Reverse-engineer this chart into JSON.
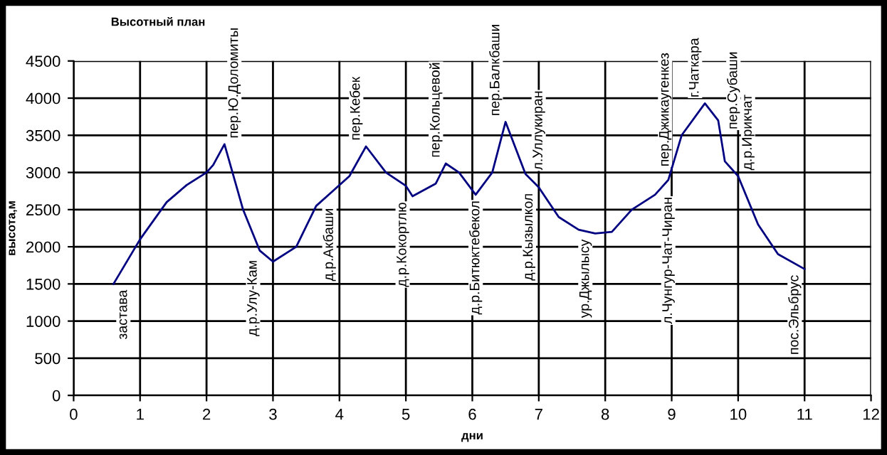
{
  "chart_data": {
    "type": "line",
    "title": "Высотный план",
    "xlabel": "дни",
    "ylabel": "высота,м",
    "xlim": [
      0,
      12
    ],
    "xticks": [
      0,
      1,
      2,
      3,
      4,
      5,
      6,
      7,
      8,
      9,
      10,
      11,
      12
    ],
    "ylim": [
      0,
      4500
    ],
    "yticks": [
      0,
      500,
      1000,
      1500,
      2000,
      2500,
      3000,
      3500,
      4000,
      4500
    ],
    "grid": true,
    "marker": "none",
    "line_style": "solid",
    "series": [
      {
        "color": "#000080",
        "x": [
          0.6,
          1.0,
          1.4,
          1.7,
          2.0,
          2.1,
          2.27,
          2.55,
          2.8,
          3.0,
          3.35,
          3.65,
          3.9,
          4.15,
          4.4,
          4.7,
          5.0,
          5.1,
          5.45,
          5.6,
          5.8,
          6.05,
          6.3,
          6.5,
          6.8,
          7.0,
          7.3,
          7.6,
          7.85,
          8.1,
          8.4,
          8.75,
          8.95,
          9.15,
          9.5,
          9.7,
          9.8,
          10.0,
          10.3,
          10.6,
          11.0
        ],
        "values": [
          1500,
          2100,
          2600,
          2830,
          3000,
          3100,
          3380,
          2500,
          1950,
          1800,
          2000,
          2550,
          2750,
          2950,
          3350,
          3000,
          2820,
          2680,
          2850,
          3120,
          3000,
          2700,
          3000,
          3680,
          2980,
          2800,
          2400,
          2230,
          2180,
          2200,
          2500,
          2700,
          2900,
          3500,
          3930,
          3700,
          3150,
          2950,
          2300,
          1900,
          1700
        ]
      }
    ],
    "annotations": [
      {
        "text": "застава",
        "x": 0.6,
        "y": 1500
      },
      {
        "text": "пер.Ю.Доломиты",
        "x": 2.27,
        "y": 3380
      },
      {
        "text": "д.р.Улу-Кам",
        "x": 2.85,
        "y": 1900
      },
      {
        "text": "д.р.Акбаши",
        "x": 3.7,
        "y": 2600
      },
      {
        "text": "пер.Кебек",
        "x": 4.4,
        "y": 3350
      },
      {
        "text": "д.р.Кокортлю",
        "x": 5.1,
        "y": 2680
      },
      {
        "text": "пер.Кольцевой",
        "x": 5.6,
        "y": 3120
      },
      {
        "text": "д.р.Битюктебекол",
        "x": 6.05,
        "y": 2700
      },
      {
        "text": "пер.Балкбаши",
        "x": 6.5,
        "y": 3680
      },
      {
        "text": "л.Уллукиран",
        "x": 6.85,
        "y": 2950
      },
      {
        "text": "д.р.Кызылкол",
        "x": 7.0,
        "y": 2800
      },
      {
        "text": "ур.Джылысу",
        "x": 7.85,
        "y": 2180
      },
      {
        "text": "л.Чунгур-Чат-Чиран",
        "x": 8.8,
        "y": 2750
      },
      {
        "text": "пер.Джикаугенкез",
        "x": 9.05,
        "y": 3000
      },
      {
        "text": "г.Чаткара",
        "x": 9.5,
        "y": 3930
      },
      {
        "text": "пер.Субаши",
        "x": 9.78,
        "y": 3500
      },
      {
        "text": "д.р.Ирикчат",
        "x": 10.0,
        "y": 2950
      },
      {
        "text": "пос.Эльбрус",
        "x": 11.0,
        "y": 1700
      }
    ]
  }
}
